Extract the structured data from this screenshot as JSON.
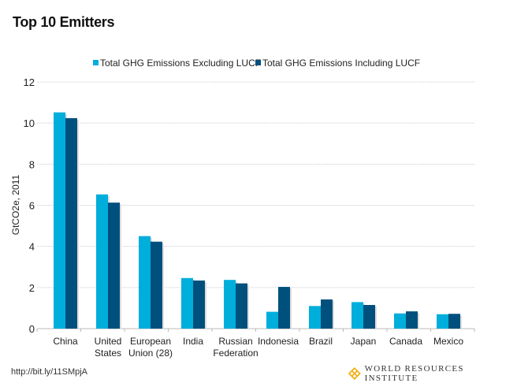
{
  "chart_data": {
    "type": "bar",
    "title": "Top 10 Emitters",
    "ylabel": "GtCO2e, 2011",
    "ylim": [
      0,
      12
    ],
    "yticks": [
      0,
      2,
      4,
      6,
      8,
      10,
      12
    ],
    "grid": true,
    "legend_position": "top",
    "categories": [
      [
        "China"
      ],
      [
        "United",
        "States"
      ],
      [
        "European",
        "Union (28)"
      ],
      [
        "India"
      ],
      [
        "Russian",
        "Federation"
      ],
      [
        "Indonesia"
      ],
      [
        "Brazil"
      ],
      [
        "Japan"
      ],
      [
        "Canada"
      ],
      [
        "Mexico"
      ]
    ],
    "series": [
      {
        "name": "Total GHG Emissions Excluding LUCF",
        "color": "#00AEDB",
        "values": [
          10.52,
          6.53,
          4.5,
          2.46,
          2.37,
          0.82,
          1.1,
          1.29,
          0.74,
          0.7
        ]
      },
      {
        "name": "Total GHG Emissions Including LUCF",
        "color": "#00507D",
        "values": [
          10.24,
          6.13,
          4.23,
          2.34,
          2.2,
          2.03,
          1.42,
          1.15,
          0.84,
          0.72
        ]
      }
    ]
  },
  "footer": {
    "source": "http://bit.ly/11SMpjA",
    "logo_text": "WORLD RESOURCES INSTITUTE"
  }
}
